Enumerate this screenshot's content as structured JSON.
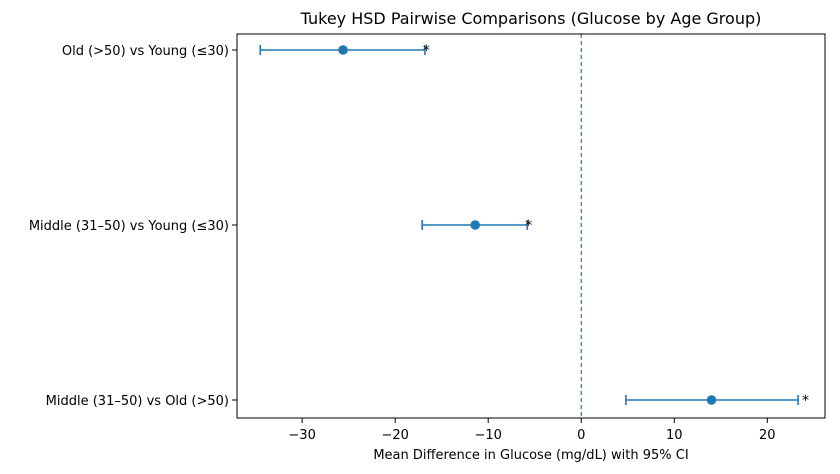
{
  "chart_data": {
    "type": "errorbar",
    "title": "Tukey HSD Pairwise Comparisons (Glucose by Age Group)",
    "xlabel": "Mean Difference in Glucose (mg/dL) with 95% CI",
    "ylabel": "",
    "xlim": [
      -37,
      26.2
    ],
    "xticks": [
      -30,
      -20,
      -10,
      0,
      10,
      20
    ],
    "xtick_labels": [
      "−30",
      "−20",
      "−10",
      "0",
      "10",
      "20"
    ],
    "reference_line": 0,
    "grid": false,
    "comparisons": [
      {
        "label": "Old (>50) vs Young (≤30)",
        "mean": -25.6,
        "lower": -34.5,
        "upper": -16.8,
        "marker": "*"
      },
      {
        "label": "Middle (31–50) vs Young (≤30)",
        "mean": -11.4,
        "lower": -17.1,
        "upper": -5.8,
        "marker": "*"
      },
      {
        "label": "Middle (31–50) vs Old (>50)",
        "mean": 14.0,
        "lower": 4.8,
        "upper": 23.3,
        "marker": "*"
      }
    ],
    "colors": {
      "series": "#1f77b4",
      "reference": "#1f77b4",
      "axes": "#000000"
    }
  }
}
